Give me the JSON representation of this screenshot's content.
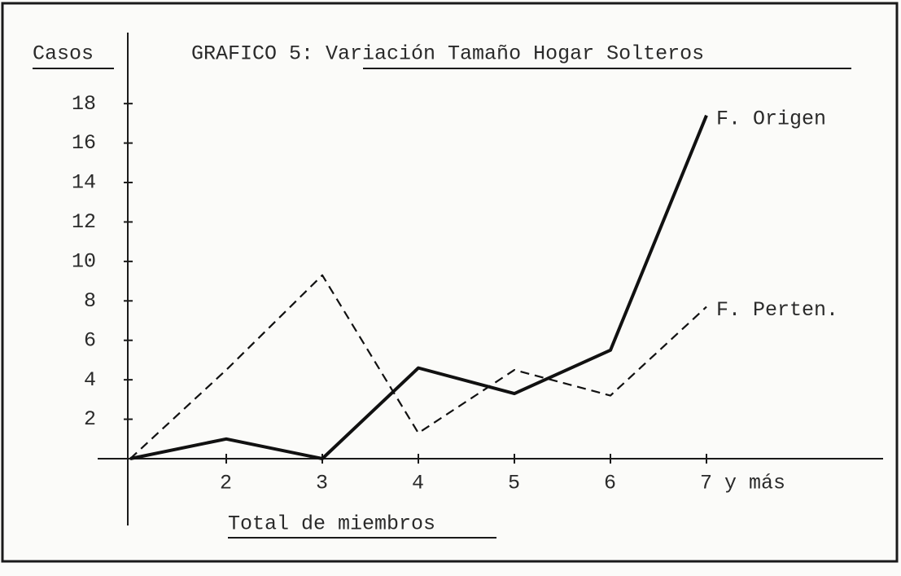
{
  "chart_data": {
    "type": "line",
    "title": "GRAFICO 5: Variación Tamaño Hogar Solteros",
    "y_label": "Casos",
    "x_label": "Total de miembros",
    "categories": [
      null,
      "2",
      "3",
      "4",
      "5",
      "6",
      "7 y más"
    ],
    "series": [
      {
        "name": "F. Origen",
        "color": "#111111",
        "style": "solid",
        "values": [
          0,
          1,
          0,
          4.6,
          3.3,
          5.5,
          17.4
        ]
      },
      {
        "name": "F. Perten.",
        "color": "#111111",
        "style": "dashed",
        "values": [
          0,
          4.5,
          9.3,
          1.3,
          4.5,
          3.2,
          7.7
        ]
      }
    ],
    "ylim": [
      0,
      21.6
    ],
    "yticks": [
      2,
      4,
      6,
      8,
      10,
      12,
      14,
      16,
      18
    ],
    "grid": false
  }
}
